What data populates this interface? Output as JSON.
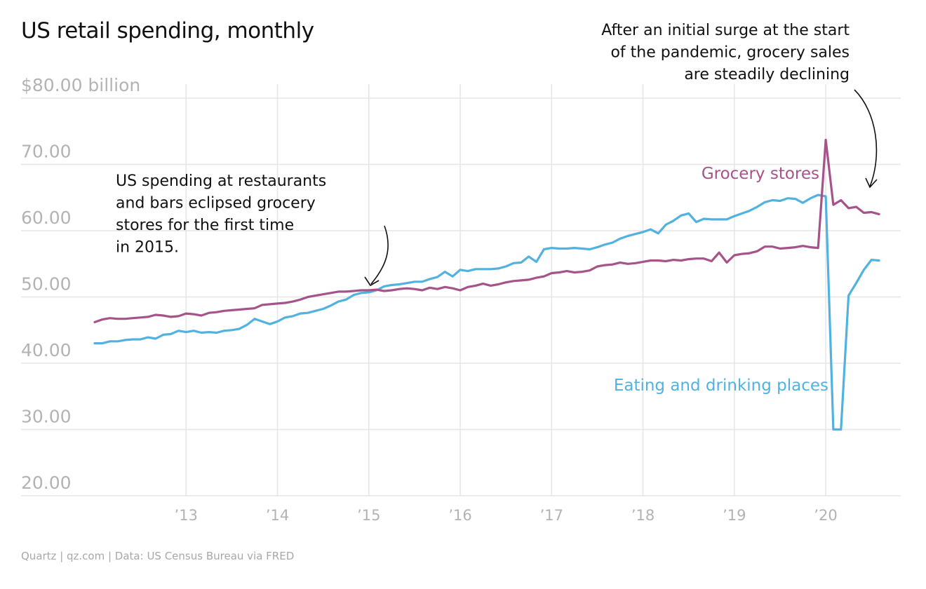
{
  "title": "US retail spending, monthly",
  "source": "Quartz | qz.com | Data: US Census Bureau via FRED",
  "colors": {
    "grocery": "#A6538A",
    "eating": "#51B2E0",
    "grid": "#e6e6e6",
    "axis": "#b3b3b3"
  },
  "chart_data": {
    "type": "line",
    "title": "US retail spending, monthly",
    "ylim": [
      20,
      80
    ],
    "xlim": [
      "2012-01",
      "2020-10"
    ],
    "y_ticks": [
      {
        "value": 80,
        "label": "$80.00 billion"
      },
      {
        "value": 70,
        "label": "70.00"
      },
      {
        "value": 60,
        "label": "60.00"
      },
      {
        "value": 50,
        "label": "50.00"
      },
      {
        "value": 40,
        "label": "40.00"
      },
      {
        "value": 30,
        "label": "30.00"
      },
      {
        "value": 20,
        "label": "20.00"
      }
    ],
    "x_ticks": [
      {
        "value": "2013-01",
        "label": "’13"
      },
      {
        "value": "2014-01",
        "label": "’14"
      },
      {
        "value": "2015-01",
        "label": "’15"
      },
      {
        "value": "2016-01",
        "label": "’16"
      },
      {
        "value": "2017-01",
        "label": "’17"
      },
      {
        "value": "2018-01",
        "label": "’18"
      },
      {
        "value": "2019-01",
        "label": "’19"
      },
      {
        "value": "2020-01",
        "label": "’20"
      }
    ],
    "grid": true,
    "x_start": "2012-01",
    "series": [
      {
        "name": "Grocery stores",
        "color": "#A6538A",
        "values": [
          46.2,
          46.6,
          46.8,
          46.7,
          46.7,
          46.8,
          46.9,
          47.0,
          47.3,
          47.2,
          47.0,
          47.1,
          47.5,
          47.4,
          47.2,
          47.6,
          47.7,
          47.9,
          48.0,
          48.1,
          48.2,
          48.3,
          48.8,
          48.9,
          49.0,
          49.1,
          49.3,
          49.6,
          50.0,
          50.2,
          50.4,
          50.6,
          50.8,
          50.8,
          50.9,
          51.0,
          51.0,
          51.1,
          50.9,
          51.0,
          51.2,
          51.3,
          51.2,
          51.0,
          51.4,
          51.2,
          51.5,
          51.3,
          51.0,
          51.5,
          51.7,
          52.0,
          51.7,
          51.9,
          52.2,
          52.4,
          52.5,
          52.6,
          52.9,
          53.1,
          53.6,
          53.7,
          53.9,
          53.7,
          53.8,
          54.0,
          54.6,
          54.8,
          54.9,
          55.2,
          55.0,
          55.1,
          55.3,
          55.5,
          55.5,
          55.4,
          55.6,
          55.5,
          55.7,
          55.8,
          55.8,
          55.4,
          56.7,
          55.2,
          56.3,
          56.5,
          56.6,
          56.9,
          57.6,
          57.6,
          57.3,
          57.4,
          57.5,
          57.7,
          57.5,
          57.4,
          73.7,
          63.9,
          64.6,
          63.4,
          63.6,
          62.7,
          62.8,
          62.5
        ]
      },
      {
        "name": "Eating and drinking places",
        "color": "#51B2E0",
        "values": [
          43.0,
          43.0,
          43.3,
          43.3,
          43.5,
          43.6,
          43.6,
          43.9,
          43.7,
          44.3,
          44.4,
          44.9,
          44.7,
          44.9,
          44.6,
          44.7,
          44.6,
          44.9,
          45.0,
          45.2,
          45.8,
          46.7,
          46.3,
          45.9,
          46.3,
          46.9,
          47.1,
          47.5,
          47.6,
          47.9,
          48.2,
          48.7,
          49.3,
          49.6,
          50.3,
          50.6,
          50.7,
          51.0,
          51.6,
          51.8,
          51.9,
          52.1,
          52.3,
          52.3,
          52.7,
          53.0,
          53.8,
          53.1,
          54.1,
          53.9,
          54.2,
          54.2,
          54.2,
          54.3,
          54.6,
          55.1,
          55.2,
          56.1,
          55.3,
          57.2,
          57.4,
          57.3,
          57.3,
          57.4,
          57.3,
          57.2,
          57.5,
          57.9,
          58.2,
          58.8,
          59.2,
          59.5,
          59.8,
          60.2,
          59.6,
          60.9,
          61.5,
          62.3,
          62.6,
          61.3,
          61.8,
          61.7,
          61.7,
          61.7,
          62.2,
          62.6,
          63.0,
          63.6,
          64.3,
          64.6,
          64.5,
          64.9,
          64.8,
          64.2,
          64.9,
          65.4,
          65.2,
          30.0,
          30.0,
          50.2,
          52.1,
          54.1,
          55.6,
          55.5
        ]
      }
    ],
    "series_labels": [
      {
        "series": "Grocery stores",
        "text": "Grocery stores"
      },
      {
        "series": "Eating and drinking places",
        "text": "Eating and drinking places"
      }
    ],
    "annotations": [
      {
        "lines": [
          "US spending at restaurants",
          "and bars eclipsed grocery",
          "stores for the first time",
          "in 2015."
        ]
      },
      {
        "lines": [
          "After an initial surge at the start",
          "of the pandemic, grocery sales",
          "are steadily declining"
        ]
      }
    ]
  }
}
